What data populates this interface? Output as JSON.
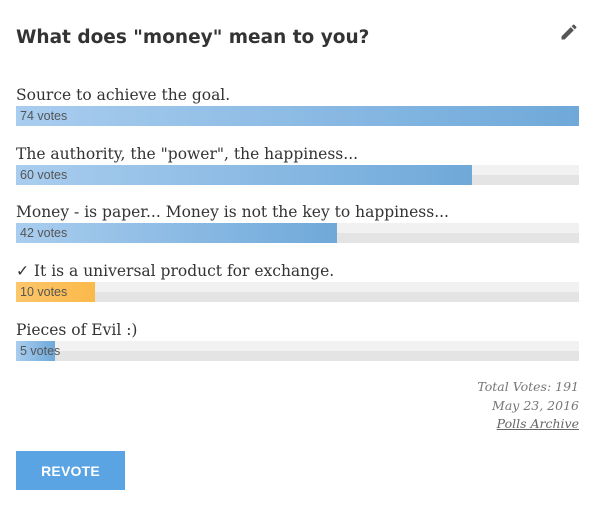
{
  "poll": {
    "title": "What does \"money\" mean to you?",
    "edit_icon": "pencil-icon",
    "answers": [
      {
        "label": "Source to achieve the goal.",
        "votes_text": "74 votes",
        "votes": 74,
        "fraction": 1.0,
        "voted": false
      },
      {
        "label": "The authority, the \"power\", the happiness...",
        "votes_text": "60 votes",
        "votes": 60,
        "fraction": 0.81,
        "voted": false
      },
      {
        "label": "Money - is paper... Money is not the key to happiness...",
        "votes_text": "42 votes",
        "votes": 42,
        "fraction": 0.57,
        "voted": false
      },
      {
        "label": "✓ It is a universal product for exchange.",
        "votes_text": "10 votes",
        "votes": 10,
        "fraction": 0.14,
        "voted": true
      },
      {
        "label": "Pieces of Evil :)",
        "votes_text": "5 votes",
        "votes": 5,
        "fraction": 0.07,
        "voted": false
      }
    ],
    "total_votes": "Total Votes: 191",
    "date": "May 23, 2016",
    "archive_label": "Polls Archive",
    "revote_label": "REVOTE"
  },
  "colors": {
    "bar": "#6fa9d9",
    "bar_voted": "#fbb94a",
    "button": "#5aa4e3"
  }
}
